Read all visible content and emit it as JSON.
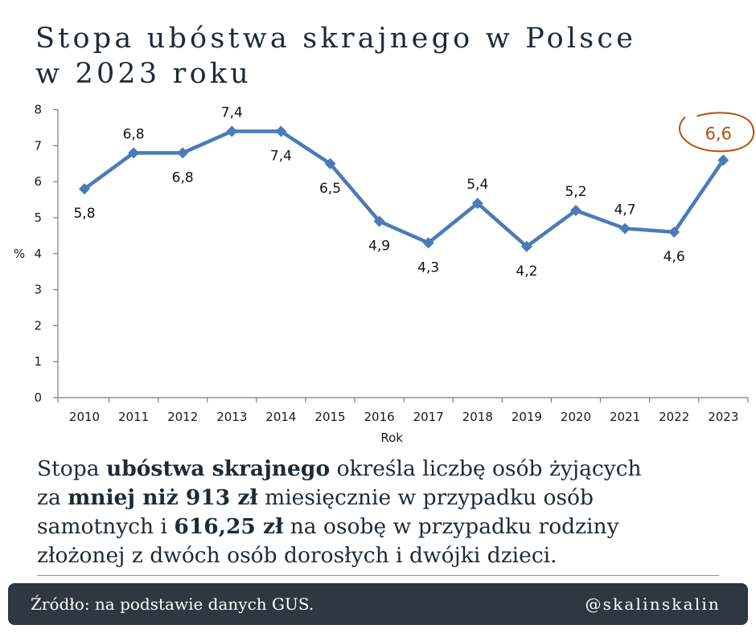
{
  "title": {
    "line1": "Stopa ubóstwa skrajnego w Polsce",
    "line2": "w 2023 roku"
  },
  "chart_data": {
    "type": "line",
    "x": [
      "2010",
      "2011",
      "2012",
      "2013",
      "2014",
      "2015",
      "2016",
      "2017",
      "2018",
      "2019",
      "2020",
      "2021",
      "2022",
      "2023"
    ],
    "series": [
      {
        "values": [
          5.8,
          6.8,
          6.8,
          7.4,
          7.4,
          6.5,
          4.9,
          4.3,
          5.4,
          4.2,
          5.2,
          4.7,
          4.6,
          6.6
        ]
      }
    ],
    "data_labels": [
      "5,8",
      "6,8",
      "6,8",
      "7,4",
      "7,4",
      "6,5",
      "4,9",
      "4,3",
      "5,4",
      "4,2",
      "5,2",
      "4,7",
      "4,6",
      "6,6"
    ],
    "label_position": [
      "below",
      "above",
      "below",
      "above",
      "below",
      "below",
      "below",
      "below",
      "above",
      "below",
      "above",
      "above",
      "below",
      "above"
    ],
    "highlight": {
      "index": 13,
      "label": "6,6",
      "color": "#b5520f"
    },
    "ylim": [
      0,
      8
    ],
    "yticks": [
      "0",
      "1",
      "2",
      "3",
      "4",
      "5",
      "6",
      "7",
      "8"
    ],
    "xlabel": "Rok",
    "ylabel": "%",
    "grid": false,
    "line_color": "#4a7bb8",
    "marker": "diamond"
  },
  "description": {
    "l1_a": "Stopa ",
    "l1_b": "ubóstwa skrajnego",
    "l1_c": " określa liczbę osób żyjących",
    "l2_a": "za ",
    "l2_b": "mniej niż 913 zł",
    "l2_c": " miesięcznie w przypadku osób",
    "l3_a": "samotnych i ",
    "l3_b": "616,25 zł",
    "l3_c": " na osobę w przypadku rodziny",
    "l4": "złożonej z dwóch osób dorosłych i dwójki dzieci."
  },
  "footer": {
    "source": "Źródło: na podstawie danych GUS.",
    "handle": "@skalinskalin"
  }
}
